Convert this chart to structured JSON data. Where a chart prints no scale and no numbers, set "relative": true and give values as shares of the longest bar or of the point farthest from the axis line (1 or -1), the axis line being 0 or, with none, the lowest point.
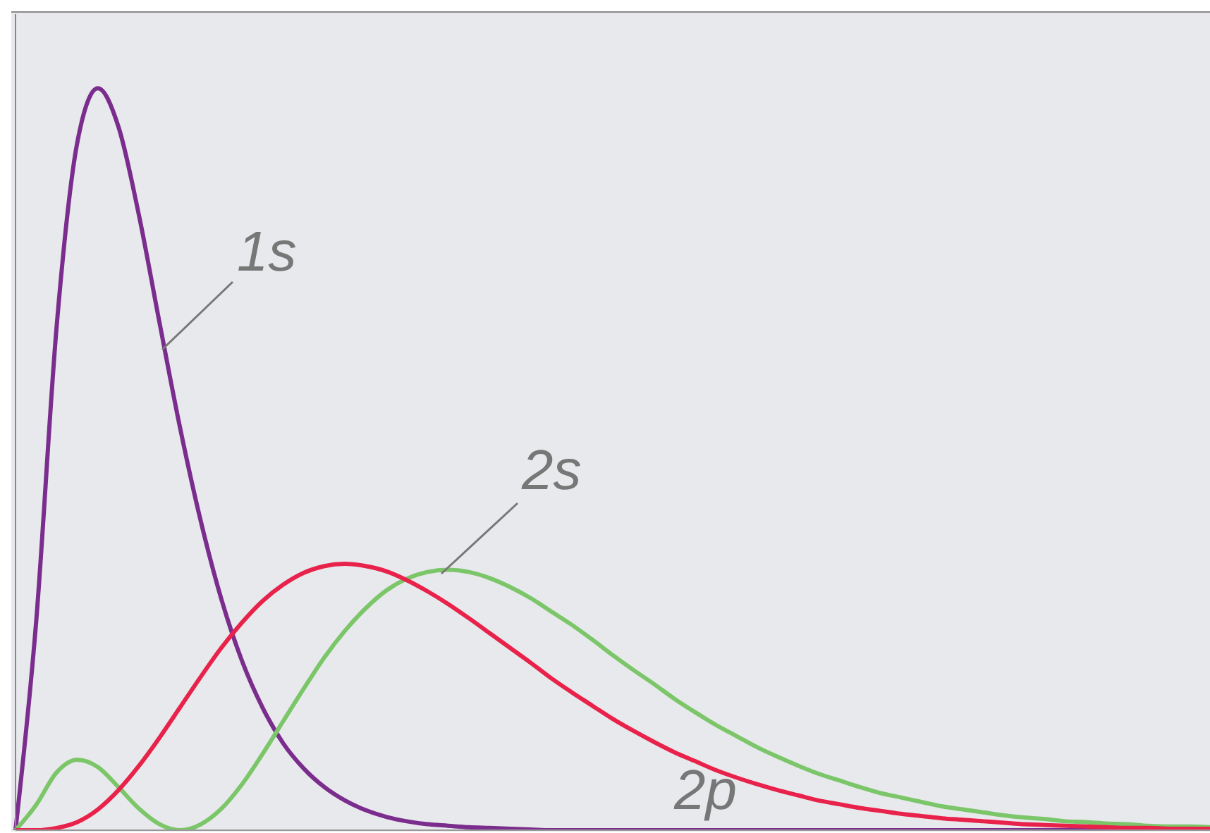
{
  "chart_data": {
    "type": "line",
    "relative": true,
    "legend": false,
    "grid": false,
    "marker": "none",
    "line_style": "solid",
    "categories": [
      null,
      null,
      null,
      null,
      null,
      null,
      null,
      null,
      null,
      null,
      null,
      null,
      null,
      null,
      null,
      null,
      null,
      null,
      null,
      null,
      null,
      null,
      null,
      null,
      null,
      null,
      null,
      null,
      null,
      null,
      null,
      null,
      null,
      null,
      null,
      null,
      null,
      null,
      null,
      null,
      null,
      null,
      null,
      null,
      null,
      null,
      null,
      null,
      null,
      null,
      null,
      null,
      null,
      null,
      null,
      null,
      null,
      null,
      null
    ],
    "series": [
      {
        "name": "1s",
        "color": "#7b2d8e",
        "values": [
          0,
          0.28,
          0.68,
          0.927,
          1,
          0.948,
          0.828,
          0.683,
          0.541,
          0.416,
          0.311,
          0.228,
          0.165,
          0.117,
          0.083,
          0.058,
          0.04,
          0.027,
          0.018,
          0.012,
          0.008,
          0.006,
          0.004,
          0.003,
          0.002,
          0.001,
          0,
          0,
          0,
          0,
          0,
          0,
          0,
          0,
          0,
          0,
          0,
          0,
          0,
          0,
          0,
          0,
          0,
          0,
          0,
          0,
          0,
          0,
          0,
          0,
          0,
          0,
          0,
          0,
          0,
          null,
          null,
          null,
          null
        ]
      },
      {
        "name": "2s",
        "color": "#7cc66a",
        "values": [
          0,
          0.034,
          0.078,
          0.095,
          0.085,
          0.058,
          0.029,
          0.008,
          0,
          0.008,
          0.029,
          0.062,
          0.103,
          0.147,
          0.191,
          0.233,
          0.269,
          0.299,
          0.323,
          0.339,
          0.348,
          0.351,
          0.348,
          0.34,
          0.328,
          0.313,
          0.295,
          0.277,
          0.257,
          0.236,
          0.216,
          0.197,
          0.177,
          0.159,
          0.142,
          0.127,
          0.112,
          0.099,
          0.087,
          0.076,
          0.067,
          0.058,
          0.05,
          0.044,
          0.038,
          0.032,
          0.028,
          0.024,
          0.02,
          0.017,
          0.015,
          0.012,
          0.011,
          0.009,
          0.008,
          0.006,
          0.005,
          0.005,
          0.004
        ]
      },
      {
        "name": "2p",
        "color": "#e8224a",
        "values": [
          0,
          0,
          0.003,
          0.011,
          0.028,
          0.054,
          0.087,
          0.125,
          0.166,
          0.207,
          0.246,
          0.28,
          0.309,
          0.331,
          0.347,
          0.356,
          0.359,
          0.356,
          0.349,
          0.337,
          0.322,
          0.305,
          0.286,
          0.266,
          0.246,
          0.226,
          0.205,
          0.186,
          0.168,
          0.15,
          0.134,
          0.119,
          0.105,
          0.093,
          0.081,
          0.071,
          0.062,
          0.054,
          0.047,
          0.04,
          0.035,
          0.03,
          0.026,
          0.022,
          0.019,
          0.016,
          0.014,
          0.012,
          0.01,
          0.008,
          0.007,
          0.006,
          0.005,
          0.004,
          0.003,
          0.003,
          0.002,
          0.002,
          0.002
        ]
      }
    ]
  }
}
